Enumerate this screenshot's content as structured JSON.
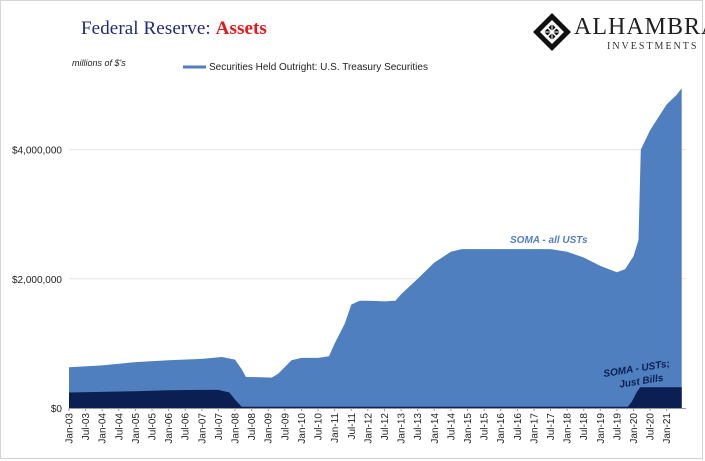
{
  "title": {
    "prefix": "Federal Reserve: ",
    "accent": "Assets"
  },
  "logo": {
    "brand": "ALHAMBRA",
    "sub": "INVESTMENTS",
    "icon": "diamond-lattice-icon"
  },
  "colors": {
    "title": "#1f2a78",
    "accent": "#e8161b",
    "all_usts": "#4f7fbe",
    "bills": "#0b1f52"
  },
  "chart_data": {
    "type": "area",
    "units_label": "millions of $'s",
    "legend": [
      {
        "name": "Securities Held Outright: U.S. Treasury Securities",
        "color": "#4f7fbe"
      }
    ],
    "legend_position": "top-center",
    "ylim": [
      0,
      5000000
    ],
    "yticks": [
      {
        "value": 0,
        "label": "$0"
      },
      {
        "value": 2000000,
        "label": "$2,000,000"
      },
      {
        "value": 4000000,
        "label": "$4,000,000"
      }
    ],
    "xlim": [
      2003.0,
      2021.58
    ],
    "xticks": [
      "Jan-03",
      "Jul-03",
      "Jan-04",
      "Jul-04",
      "Jan-05",
      "Jul-05",
      "Jan-06",
      "Jul-06",
      "Jan-07",
      "Jul-07",
      "Jan-08",
      "Jul-08",
      "Jan-09",
      "Jul-09",
      "Jan-10",
      "Jul-10",
      "Jan-11",
      "Jul-11",
      "Jan-12",
      "Jul-12",
      "Jan-13",
      "Jul-13",
      "Jan-14",
      "Jul-14",
      "Jan-15",
      "Jul-15",
      "Jan-16",
      "Jul-16",
      "Jan-17",
      "Jul-17",
      "Jan-18",
      "Jul-18",
      "Jan-19",
      "Jul-19",
      "Jan-20",
      "Jul-20",
      "Jan-21"
    ],
    "grid": "horizontal",
    "series": [
      {
        "key": "all_usts",
        "annotation": "SOMA - all USTs",
        "color": "#4f7fbe",
        "points": [
          [
            2003.0,
            630000
          ],
          [
            2004.0,
            660000
          ],
          [
            2005.0,
            710000
          ],
          [
            2006.0,
            740000
          ],
          [
            2007.0,
            760000
          ],
          [
            2007.6,
            790000
          ],
          [
            2008.0,
            750000
          ],
          [
            2008.2,
            600000
          ],
          [
            2008.33,
            480000
          ],
          [
            2008.8,
            475000
          ],
          [
            2009.1,
            470000
          ],
          [
            2009.3,
            530000
          ],
          [
            2009.7,
            740000
          ],
          [
            2010.0,
            776000
          ],
          [
            2010.5,
            776000
          ],
          [
            2010.83,
            800000
          ],
          [
            2011.0,
            1000000
          ],
          [
            2011.3,
            1300000
          ],
          [
            2011.5,
            1600000
          ],
          [
            2011.75,
            1660000
          ],
          [
            2012.0,
            1660000
          ],
          [
            2012.5,
            1650000
          ],
          [
            2012.83,
            1660000
          ],
          [
            2013.0,
            1760000
          ],
          [
            2013.5,
            2000000
          ],
          [
            2014.0,
            2250000
          ],
          [
            2014.5,
            2420000
          ],
          [
            2014.83,
            2460000
          ],
          [
            2015.0,
            2460000
          ],
          [
            2016.0,
            2460000
          ],
          [
            2017.0,
            2460000
          ],
          [
            2017.5,
            2460000
          ],
          [
            2018.0,
            2420000
          ],
          [
            2018.5,
            2330000
          ],
          [
            2019.0,
            2200000
          ],
          [
            2019.5,
            2100000
          ],
          [
            2019.75,
            2150000
          ],
          [
            2020.0,
            2350000
          ],
          [
            2020.15,
            2600000
          ],
          [
            2020.22,
            4000000
          ],
          [
            2020.5,
            4300000
          ],
          [
            2021.0,
            4700000
          ],
          [
            2021.3,
            4850000
          ],
          [
            2021.45,
            4950000
          ]
        ]
      },
      {
        "key": "bills",
        "annotation": "SOMA - USTs; Just Bills",
        "color": "#0b1f52",
        "points": [
          [
            2003.0,
            240000
          ],
          [
            2004.0,
            250000
          ],
          [
            2005.0,
            260000
          ],
          [
            2006.0,
            275000
          ],
          [
            2007.0,
            280000
          ],
          [
            2007.5,
            280000
          ],
          [
            2007.83,
            240000
          ],
          [
            2008.0,
            130000
          ],
          [
            2008.2,
            20000
          ],
          [
            2008.33,
            18000
          ],
          [
            2019.0,
            18000
          ],
          [
            2019.83,
            18000
          ],
          [
            2019.95,
            100000
          ],
          [
            2020.1,
            250000
          ],
          [
            2020.2,
            320000
          ],
          [
            2021.45,
            320000
          ]
        ]
      }
    ]
  }
}
